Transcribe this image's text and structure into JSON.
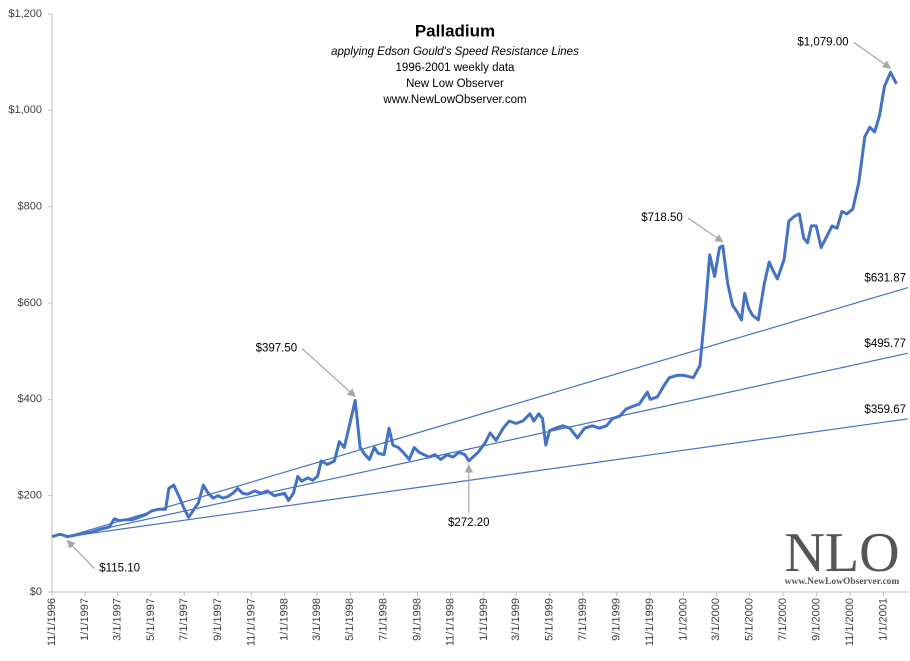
{
  "chart_data": {
    "type": "line",
    "title": "Palladium",
    "subtitle": [
      "applying Edson Gould's Speed Resistance  Lines",
      "1996-2001 weekly data",
      "New Low Observer",
      "www.NewLowObserver.com"
    ],
    "watermark": [
      "NLO",
      "www.NewLowObserver.com"
    ],
    "xlim": [
      "11/1/1996",
      "2/15/2001"
    ],
    "xticks": [
      "11/1/1996",
      "1/1/1997",
      "3/1/1997",
      "5/1/1997",
      "7/1/1997",
      "9/1/1997",
      "11/1/1997",
      "1/1/1998",
      "3/1/1998",
      "5/1/1998",
      "7/1/1998",
      "9/1/1998",
      "11/1/1998",
      "1/1/1999",
      "3/1/1999",
      "5/1/1999",
      "7/1/1999",
      "9/1/1999",
      "11/1/1999",
      "1/1/2000",
      "3/1/2000",
      "5/1/2000",
      "7/1/2000",
      "9/1/2000",
      "11/1/2000",
      "1/1/2001"
    ],
    "ylim": [
      0,
      1200
    ],
    "yticks": [
      {
        "value": 0,
        "label": "$0"
      },
      {
        "value": 200,
        "label": "$200"
      },
      {
        "value": 400,
        "label": "$400"
      },
      {
        "value": 600,
        "label": "$600"
      },
      {
        "value": 800,
        "label": "$800"
      },
      {
        "value": 1000,
        "label": "$1,000"
      },
      {
        "value": 1200,
        "label": "$1,200"
      }
    ],
    "grid": false,
    "series": [
      {
        "color": "#4472c4",
        "x": [
          "11/1/1996",
          "11/16/1996",
          "11/29/1996",
          "12/13/1996",
          "1/1/1997",
          "1/13/1997",
          "1/27/1997",
          "2/14/1997",
          "2/23/1997",
          "3/4/1997",
          "3/16/1997",
          "3/27/1997",
          "4/9/1997",
          "4/21/1997",
          "5/2/1997",
          "5/15/1997",
          "5/28/1997",
          "6/3/1997",
          "6/12/1997",
          "6/21/1997",
          "6/30/1997",
          "7/9/1997",
          "7/18/1997",
          "7/27/1997",
          "8/5/1997",
          "8/14/1997",
          "8/23/1997",
          "9/1/1997",
          "9/10/1997",
          "9/19/1997",
          "9/28/1997",
          "10/7/1997",
          "10/16/1997",
          "10/25/1997",
          "11/7/1997",
          "11/19/1997",
          "11/30/1997",
          "12/13/1997",
          "1/1/1998",
          "1/8/1998",
          "1/17/1998",
          "1/25/1998",
          "2/1/1998",
          "2/12/1998",
          "2/21/1998",
          "3/2/1998",
          "3/9/1998",
          "3/20/1998",
          "4/2/1998",
          "4/11/1998",
          "4/20/1998",
          "5/10/1998",
          "5/19/1998",
          "5/28/1998",
          "6/5/1998",
          "6/14/1998",
          "6/21/1998",
          "7/2/1998",
          "7/11/1998",
          "7/18/1998",
          "7/28/1998",
          "8/6/1998",
          "8/17/1998",
          "8/26/1998",
          "9/4/1998",
          "9/13/1998",
          "9/22/1998",
          "10/3/1998",
          "10/14/1998",
          "10/25/1998",
          "11/5/1998",
          "11/16/1998",
          "11/27/1998",
          "12/4/1998",
          "12/21/1998",
          "1/3/1999",
          "1/12/1999",
          "1/23/1999",
          "2/5/1999",
          "2/16/1999",
          "2/28/1999",
          "3/13/1999",
          "3/26/1999",
          "4/2/1999",
          "4/11/1999",
          "4/18/1999",
          "4/24/1999",
          "5/1/1999",
          "5/12/1999",
          "5/25/1999",
          "6/7/1999",
          "6/21/1999",
          "7/4/1999",
          "7/18/1999",
          "7/31/1999",
          "8/13/1999",
          "8/24/1999",
          "9/6/1999",
          "9/18/1999",
          "9/29/1999",
          "10/12/1999",
          "10/27/1999",
          "11/1/1999",
          "11/14/1999",
          "11/27/1999",
          "12/6/1999",
          "12/21/1999",
          "1/1/2000",
          "1/19/2000",
          "1/31/2000",
          "2/11/2000",
          "2/18/2000",
          "2/27/2000",
          "3/7/2000",
          "3/13/2000",
          "3/22/2000",
          "3/31/2000",
          "4/9/2000",
          "4/16/2000",
          "4/22/2000",
          "4/29/2000",
          "5/6/2000",
          "5/17/2000",
          "5/28/2000",
          "6/6/2000",
          "6/14/2000",
          "6/21/2000",
          "7/3/2000",
          "7/12/2000",
          "7/22/2000",
          "7/31/2000",
          "8/8/2000",
          "8/15/2000",
          "8/22/2000",
          "8/31/2000",
          "9/9/2000",
          "9/20/2000",
          "9/29/2000",
          "10/8/2000",
          "10/17/2000",
          "10/26/2000",
          "11/6/2000",
          "11/17/2000",
          "11/28/2000",
          "12/7/2000",
          "12/16/2000",
          "12/25/2000",
          "1/3/2001",
          "1/14/2001",
          "1/25/2001"
        ],
        "values": [
          115,
          120,
          115.1,
          118,
          122,
          125,
          130,
          135,
          152,
          148,
          150,
          150,
          155,
          160,
          168,
          172,
          172,
          215,
          222,
          200,
          175,
          155,
          170,
          185,
          222,
          205,
          195,
          200,
          195,
          198,
          205,
          215,
          205,
          203,
          210,
          205,
          210,
          200,
          205,
          190,
          205,
          240,
          230,
          237,
          232,
          240,
          272,
          265,
          272,
          312,
          300,
          397.5,
          300,
          285,
          275,
          300,
          288,
          285,
          340,
          305,
          300,
          290,
          275,
          300,
          290,
          285,
          280,
          285,
          275,
          285,
          280,
          290,
          285,
          272.2,
          290,
          310,
          330,
          315,
          340,
          355,
          350,
          355,
          370,
          355,
          370,
          360,
          305,
          335,
          340,
          345,
          340,
          320,
          340,
          345,
          340,
          345,
          360,
          365,
          380,
          385,
          390,
          415,
          400,
          405,
          430,
          445,
          450,
          450,
          445,
          470,
          600,
          700,
          655,
          715,
          718.5,
          640,
          595,
          580,
          565,
          620,
          590,
          575,
          565,
          640,
          685,
          665,
          650,
          690,
          770,
          780,
          785,
          735,
          725,
          760,
          760,
          715,
          740,
          760,
          755,
          790,
          785,
          795,
          850,
          945,
          965,
          955,
          990,
          1050,
          1079,
          1055
        ]
      },
      {
        "color": "#4472c4",
        "x": [
          "11/29/1996",
          "2/15/2001"
        ],
        "values": [
          115.1,
          631.87
        ],
        "end_label": "$631.87"
      },
      {
        "color": "#4472c4",
        "x": [
          "11/29/1996",
          "2/15/2001"
        ],
        "values": [
          115.1,
          495.77
        ],
        "end_label": "$495.77"
      },
      {
        "color": "#4472c4",
        "x": [
          "11/29/1996",
          "2/15/2001"
        ],
        "values": [
          115.1,
          359.67
        ],
        "end_label": "$359.67"
      }
    ],
    "annotations": [
      {
        "x": "1/14/2001",
        "value": 1079,
        "label": "$1,079.00"
      },
      {
        "x": "3/13/2000",
        "value": 718.5,
        "label": "$718.50"
      },
      {
        "x": "5/10/1998",
        "value": 397.5,
        "label": "$397.50"
      },
      {
        "x": "12/4/1998",
        "value": 272.2,
        "label": "$272.20"
      },
      {
        "x": "11/29/1996",
        "value": 115.1,
        "label": "$115.10"
      }
    ]
  }
}
